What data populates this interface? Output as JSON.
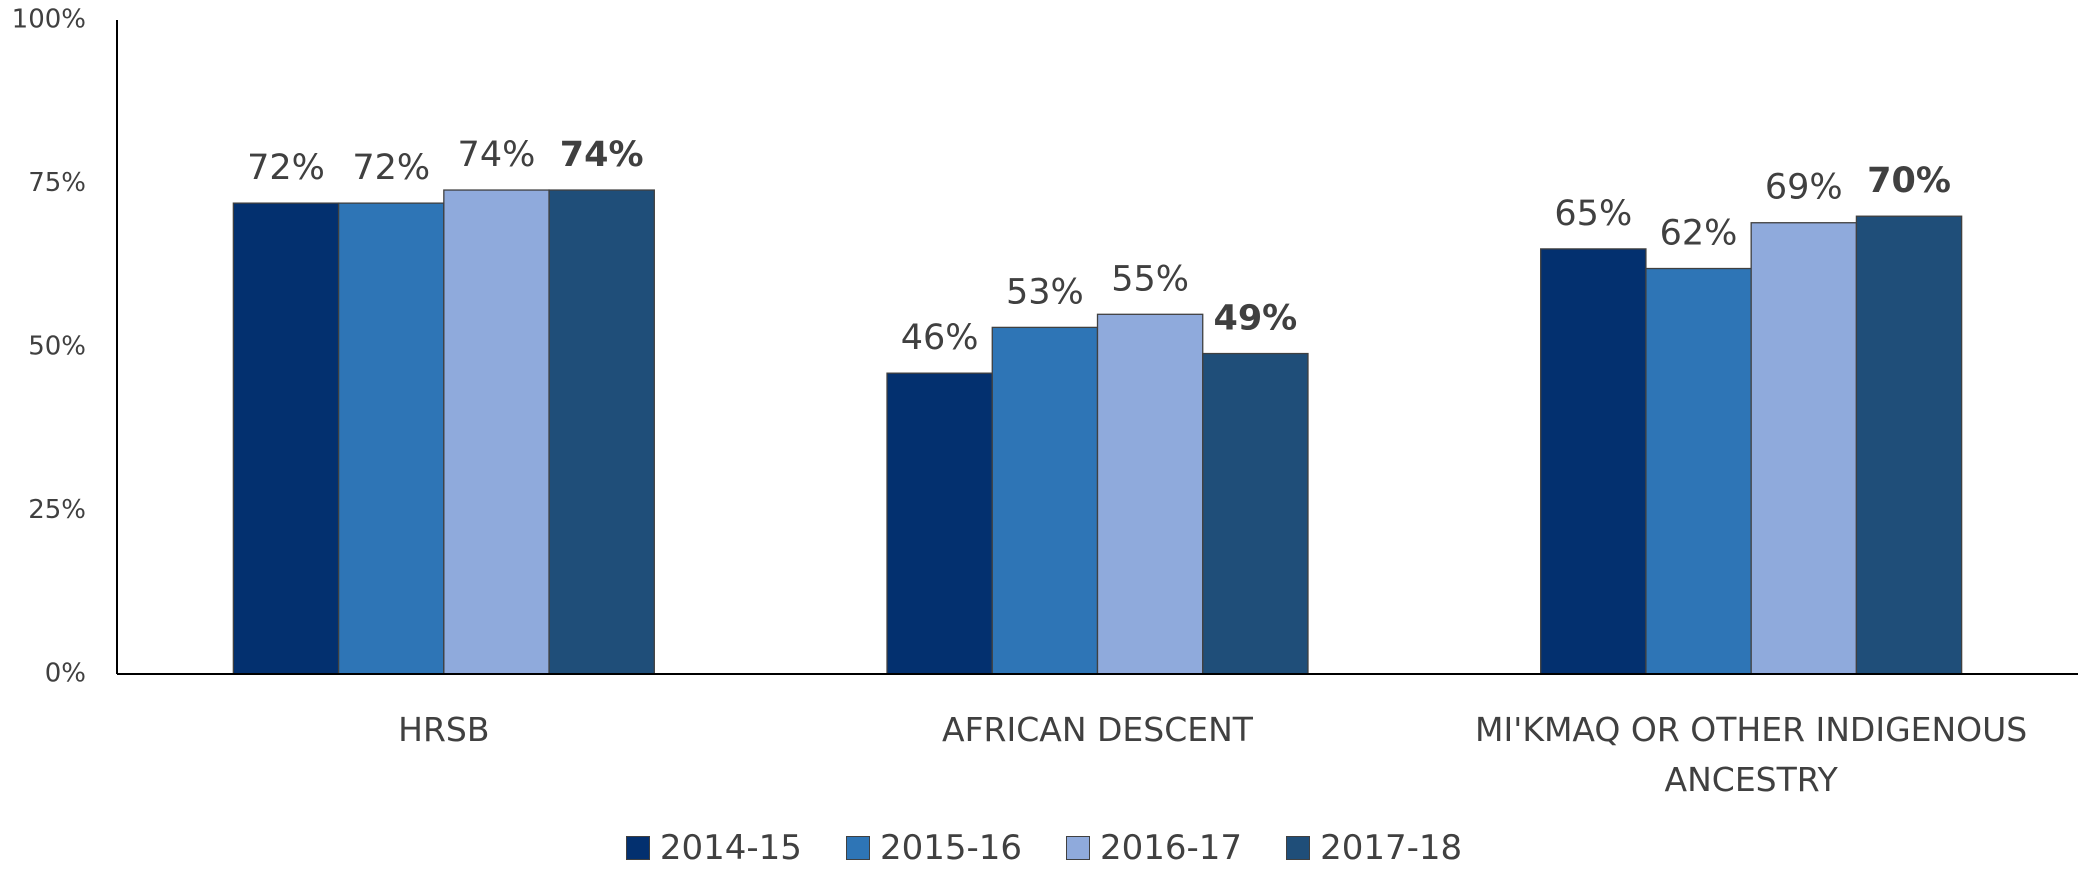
{
  "chart_data": {
    "type": "bar",
    "categories": [
      "HRSB",
      "AFRICAN DESCENT",
      "MI'KMAQ OR OTHER INDIGENOUS ANCESTRY"
    ],
    "series": [
      {
        "name": "2014-15",
        "color": "#03306f",
        "values": [
          72,
          46,
          65
        ],
        "value_labels": [
          "72%",
          "46%",
          "65%"
        ]
      },
      {
        "name": "2015-16",
        "color": "#2e75b6",
        "values": [
          72,
          53,
          62
        ],
        "value_labels": [
          "72%",
          "53%",
          "62%"
        ]
      },
      {
        "name": "2016-17",
        "color": "#8faadc",
        "values": [
          74,
          55,
          69
        ],
        "value_labels": [
          "74%",
          "55%",
          "69%"
        ]
      },
      {
        "name": "2017-18",
        "color": "#1f4e79",
        "values": [
          74,
          49,
          70
        ],
        "value_labels": [
          "74%",
          "49%",
          "70%"
        ],
        "label_weight": "bold"
      }
    ],
    "ylim": [
      0,
      100
    ],
    "yticks": [
      {
        "value": 0,
        "label": "0%"
      },
      {
        "value": 25,
        "label": "25%"
      },
      {
        "value": 50,
        "label": "50%"
      },
      {
        "value": 75,
        "label": "75%"
      },
      {
        "value": 100,
        "label": "100%"
      }
    ],
    "grid": false,
    "legend": "bottom"
  }
}
